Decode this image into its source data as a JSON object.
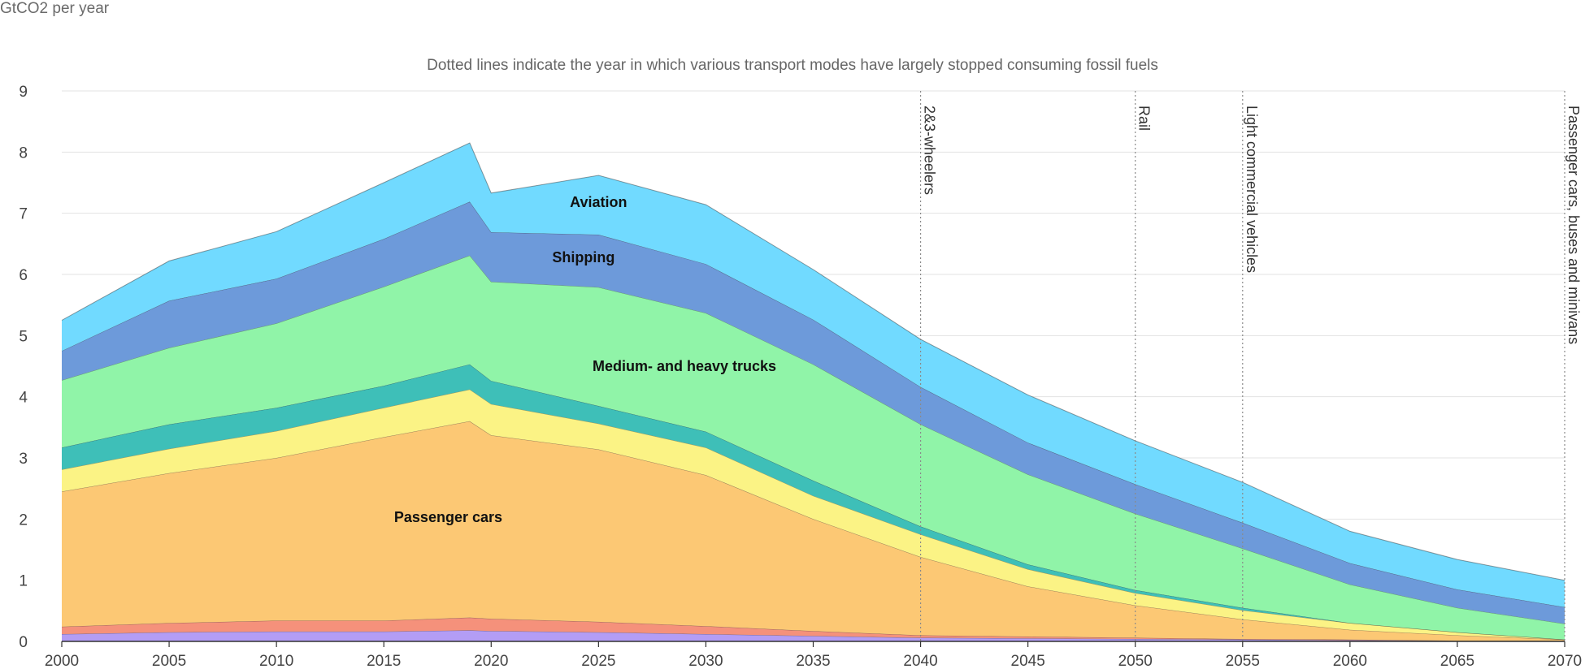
{
  "chart_data": {
    "type": "area",
    "stacked": true,
    "unit_label": "GtCO2 per year",
    "note": "Dotted lines indicate the year in which various transport modes have largely stopped consuming fossil fuels",
    "x": [
      2000,
      2005,
      2010,
      2015,
      2019,
      2020,
      2025,
      2030,
      2035,
      2040,
      2045,
      2050,
      2055,
      2060,
      2065,
      2070
    ],
    "x_ticks": [
      2000,
      2005,
      2010,
      2015,
      2020,
      2025,
      2030,
      2035,
      2040,
      2045,
      2050,
      2055,
      2060,
      2065,
      2070
    ],
    "y_ticks": [
      0,
      1,
      2,
      3,
      4,
      5,
      6,
      7,
      8,
      9
    ],
    "xlim": [
      2000,
      2070
    ],
    "ylim": [
      0,
      9
    ],
    "grid": true,
    "series": [
      {
        "key": "s1",
        "color": "#b39df5",
        "values": [
          0.12,
          0.15,
          0.16,
          0.16,
          0.18,
          0.17,
          0.15,
          0.12,
          0.09,
          0.06,
          0.05,
          0.04,
          0.03,
          0.02,
          0.01,
          0.01
        ]
      },
      {
        "key": "s2",
        "color": "#f5917b",
        "values": [
          0.12,
          0.15,
          0.18,
          0.18,
          0.21,
          0.2,
          0.17,
          0.13,
          0.08,
          0.04,
          0.03,
          0.02,
          0.01,
          0.01,
          0.0,
          0.0
        ]
      },
      {
        "key": "cars",
        "name": "Passenger cars",
        "color": "#fcc874",
        "values": [
          2.21,
          2.45,
          2.66,
          3.0,
          3.21,
          3.0,
          2.82,
          2.47,
          1.83,
          1.28,
          0.82,
          0.53,
          0.32,
          0.16,
          0.09,
          0.02
        ]
      },
      {
        "key": "s4",
        "color": "#fbf385",
        "values": [
          0.36,
          0.4,
          0.44,
          0.48,
          0.52,
          0.51,
          0.42,
          0.45,
          0.38,
          0.37,
          0.28,
          0.2,
          0.15,
          0.11,
          0.05,
          0.0
        ]
      },
      {
        "key": "s5",
        "color": "#3ebfb8",
        "values": [
          0.36,
          0.4,
          0.38,
          0.36,
          0.41,
          0.38,
          0.29,
          0.26,
          0.25,
          0.13,
          0.08,
          0.05,
          0.04,
          0.0,
          0.0,
          0.0
        ]
      },
      {
        "key": "trucks",
        "name": "Medium- and heavy trucks",
        "color": "#90f4a8",
        "values": [
          1.1,
          1.25,
          1.38,
          1.62,
          1.78,
          1.62,
          1.94,
          1.94,
          1.9,
          1.67,
          1.47,
          1.25,
          0.97,
          0.63,
          0.4,
          0.26
        ]
      },
      {
        "key": "shipping",
        "name": "Shipping",
        "color": "#6d9ada",
        "values": [
          0.48,
          0.77,
          0.73,
          0.78,
          0.88,
          0.81,
          0.86,
          0.8,
          0.73,
          0.61,
          0.52,
          0.48,
          0.42,
          0.35,
          0.3,
          0.27
        ]
      },
      {
        "key": "aviation",
        "name": "Aviation",
        "color": "#71daff",
        "values": [
          0.5,
          0.65,
          0.77,
          0.92,
          0.96,
          0.64,
          0.97,
          0.97,
          0.82,
          0.78,
          0.78,
          0.71,
          0.66,
          0.52,
          0.49,
          0.44
        ]
      }
    ],
    "series_labels": [
      {
        "key": "cars",
        "x": 2018,
        "y": 1.95
      },
      {
        "key": "trucks",
        "x": 2029,
        "y": 4.42
      },
      {
        "key": "shipping",
        "x": 2024.3,
        "y": 6.2
      },
      {
        "key": "aviation",
        "x": 2025,
        "y": 7.1
      }
    ],
    "markers": [
      {
        "year": 2040,
        "label": "2&3-wheelers"
      },
      {
        "year": 2050,
        "label": "Rail"
      },
      {
        "year": 2055,
        "label": "Light commercial vehicles"
      },
      {
        "year": 2070,
        "label": "Passenger cars, buses and minivans"
      }
    ]
  }
}
